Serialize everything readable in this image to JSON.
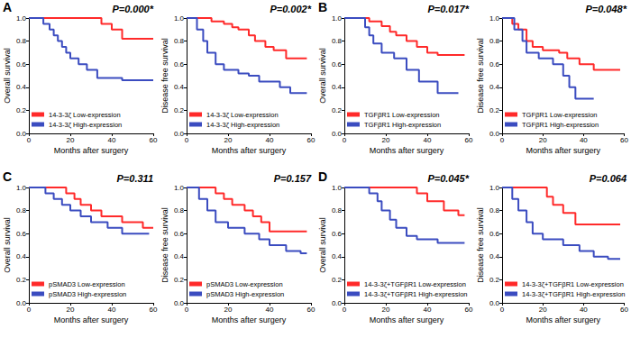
{
  "chart_data": [
    {
      "panel": "A",
      "type": "line",
      "line_style": "step",
      "annotation": "P=0.000*",
      "x_label": "Months after surgery",
      "y_label": "Overall survival",
      "legend": "lower left",
      "grid": false,
      "xlim": [
        0,
        60
      ],
      "xticks": [
        0,
        20,
        40,
        60
      ],
      "ylim": [
        0,
        1
      ],
      "yticks": [
        {
          "value": 0,
          "label": "0.0"
        },
        {
          "value": 0.2,
          "label": "0.2"
        },
        {
          "value": 0.4,
          "label": "0.4"
        },
        {
          "value": 0.6,
          "label": "0.6"
        },
        {
          "value": 0.8,
          "label": "0.8"
        },
        {
          "value": 1,
          "label": "1.0"
        }
      ],
      "series": [
        {
          "name": "14-3-3ζ Low-expression",
          "color": "#ff2a2a",
          "x": [
            0,
            35,
            40,
            45,
            60
          ],
          "values": [
            1,
            0.95,
            0.9,
            0.82,
            0.82
          ]
        },
        {
          "name": "14-3-3ζ High-expression",
          "color": "#3b4cc0",
          "x": [
            0,
            7,
            10,
            12,
            14,
            16,
            18,
            20,
            24,
            28,
            33,
            45,
            60
          ],
          "values": [
            1,
            0.95,
            0.9,
            0.85,
            0.8,
            0.75,
            0.7,
            0.65,
            0.6,
            0.55,
            0.48,
            0.46,
            0.46
          ]
        }
      ]
    },
    {
      "type": "line",
      "line_style": "step",
      "annotation": "P=0.002*",
      "x_label": "Months after surgery",
      "y_label": "Disease free survival",
      "legend": "lower left",
      "grid": false,
      "xlim": [
        0,
        60
      ],
      "xticks": [
        0,
        20,
        40,
        60
      ],
      "ylim": [
        0,
        1
      ],
      "yticks": [
        {
          "value": 0,
          "label": "0.0"
        },
        {
          "value": 0.2,
          "label": "0.2"
        },
        {
          "value": 0.4,
          "label": "0.4"
        },
        {
          "value": 0.6,
          "label": "0.6"
        },
        {
          "value": 0.8,
          "label": "0.8"
        },
        {
          "value": 1,
          "label": "1.0"
        }
      ],
      "series": [
        {
          "name": "14-3-3ζ Low-expression",
          "color": "#ff2a2a",
          "x": [
            0,
            12,
            18,
            22,
            25,
            30,
            33,
            38,
            42,
            48,
            58
          ],
          "values": [
            1,
            0.97,
            0.95,
            0.92,
            0.9,
            0.85,
            0.8,
            0.75,
            0.72,
            0.65,
            0.65
          ]
        },
        {
          "name": "14-3-3ζ High-expression",
          "color": "#3b4cc0",
          "x": [
            0,
            5,
            8,
            10,
            14,
            18,
            25,
            30,
            35,
            45,
            50,
            58
          ],
          "values": [
            1,
            0.9,
            0.8,
            0.7,
            0.6,
            0.55,
            0.52,
            0.5,
            0.45,
            0.4,
            0.35,
            0.35
          ]
        }
      ]
    },
    {
      "panel": "B",
      "type": "line",
      "line_style": "step",
      "annotation": "P=0.017*",
      "x_label": "Months after surgery",
      "y_label": "Overall survival",
      "legend": "lower left",
      "grid": false,
      "xlim": [
        0,
        60
      ],
      "xticks": [
        0,
        20,
        40,
        60
      ],
      "ylim": [
        0,
        1
      ],
      "yticks": [
        {
          "value": 0,
          "label": "0.0"
        },
        {
          "value": 0.2,
          "label": "0.2"
        },
        {
          "value": 0.4,
          "label": "0.4"
        },
        {
          "value": 0.6,
          "label": "0.6"
        },
        {
          "value": 0.8,
          "label": "0.8"
        },
        {
          "value": 1,
          "label": "1.0"
        }
      ],
      "series": [
        {
          "name": "TGFβR1 Low-expression",
          "color": "#ff2a2a",
          "x": [
            0,
            12,
            18,
            22,
            25,
            30,
            35,
            40,
            45,
            58
          ],
          "values": [
            1,
            0.97,
            0.93,
            0.88,
            0.85,
            0.8,
            0.75,
            0.7,
            0.68,
            0.68
          ]
        },
        {
          "name": "TGFβR1 High-expression",
          "color": "#3b4cc0",
          "x": [
            0,
            10,
            12,
            14,
            18,
            24,
            30,
            36,
            45,
            55
          ],
          "values": [
            1,
            0.92,
            0.85,
            0.78,
            0.7,
            0.65,
            0.55,
            0.45,
            0.35,
            0.35
          ]
        }
      ]
    },
    {
      "type": "line",
      "line_style": "step",
      "annotation": "P=0.048*",
      "x_label": "Months after surgery",
      "y_label": "Disease free survival",
      "legend": "lower left",
      "grid": false,
      "xlim": [
        0,
        60
      ],
      "xticks": [
        0,
        20,
        40,
        60
      ],
      "ylim": [
        0,
        1
      ],
      "yticks": [
        {
          "value": 0,
          "label": "0.0"
        },
        {
          "value": 0.2,
          "label": "0.2"
        },
        {
          "value": 0.4,
          "label": "0.4"
        },
        {
          "value": 0.6,
          "label": "0.6"
        },
        {
          "value": 0.8,
          "label": "0.8"
        },
        {
          "value": 1,
          "label": "1.0"
        }
      ],
      "series": [
        {
          "name": "TGFβR1 Low-expression",
          "color": "#ff2a2a",
          "x": [
            0,
            5,
            8,
            12,
            15,
            20,
            28,
            32,
            38,
            45,
            58
          ],
          "values": [
            1,
            0.95,
            0.9,
            0.8,
            0.75,
            0.72,
            0.7,
            0.65,
            0.6,
            0.55,
            0.55
          ]
        },
        {
          "name": "TGFβR1 High-expression",
          "color": "#3b4cc0",
          "x": [
            0,
            6,
            10,
            12,
            18,
            25,
            30,
            33,
            36,
            45
          ],
          "values": [
            1,
            0.9,
            0.8,
            0.7,
            0.65,
            0.6,
            0.5,
            0.4,
            0.3,
            0.3
          ]
        }
      ]
    },
    {
      "panel": "C",
      "type": "line",
      "line_style": "step",
      "annotation": "P=0.311",
      "x_label": "Months after surgery",
      "y_label": "Overall survival",
      "legend": "lower left",
      "grid": false,
      "xlim": [
        0,
        60
      ],
      "xticks": [
        0,
        20,
        40,
        60
      ],
      "ylim": [
        0,
        1
      ],
      "yticks": [
        {
          "value": 0,
          "label": "0.0"
        },
        {
          "value": 0.2,
          "label": "0.2"
        },
        {
          "value": 0.4,
          "label": "0.4"
        },
        {
          "value": 0.6,
          "label": "0.6"
        },
        {
          "value": 0.8,
          "label": "0.8"
        },
        {
          "value": 1,
          "label": "1.0"
        }
      ],
      "series": [
        {
          "name": "pSMAD3 Low-expression",
          "color": "#ff2a2a",
          "x": [
            0,
            18,
            22,
            25,
            30,
            35,
            45,
            55,
            60
          ],
          "values": [
            1,
            0.95,
            0.9,
            0.85,
            0.8,
            0.75,
            0.7,
            0.65,
            0.65
          ]
        },
        {
          "name": "pSMAD3 High-expression",
          "color": "#3b4cc0",
          "x": [
            0,
            8,
            12,
            16,
            20,
            25,
            30,
            38,
            45,
            58
          ],
          "values": [
            1,
            0.95,
            0.9,
            0.85,
            0.8,
            0.75,
            0.7,
            0.65,
            0.6,
            0.6
          ]
        }
      ]
    },
    {
      "type": "line",
      "line_style": "step",
      "annotation": "P=0.157",
      "x_label": "Months after surgery",
      "y_label": "Disease free survival",
      "legend": "lower left",
      "grid": false,
      "xlim": [
        0,
        60
      ],
      "xticks": [
        0,
        20,
        40,
        60
      ],
      "ylim": [
        0,
        1
      ],
      "yticks": [
        {
          "value": 0,
          "label": "0.0"
        },
        {
          "value": 0.2,
          "label": "0.2"
        },
        {
          "value": 0.4,
          "label": "0.4"
        },
        {
          "value": 0.6,
          "label": "0.6"
        },
        {
          "value": 0.8,
          "label": "0.8"
        },
        {
          "value": 1,
          "label": "1.0"
        }
      ],
      "series": [
        {
          "name": "pSMAD3 Low-expression",
          "color": "#ff2a2a",
          "x": [
            0,
            14,
            18,
            22,
            28,
            32,
            36,
            40,
            58
          ],
          "values": [
            1,
            0.95,
            0.9,
            0.85,
            0.8,
            0.75,
            0.7,
            0.62,
            0.62
          ]
        },
        {
          "name": "pSMAD3 High-expression",
          "color": "#3b4cc0",
          "x": [
            0,
            6,
            10,
            14,
            20,
            28,
            35,
            40,
            48,
            55,
            58
          ],
          "values": [
            1,
            0.9,
            0.8,
            0.7,
            0.65,
            0.6,
            0.55,
            0.5,
            0.45,
            0.43,
            0.43
          ]
        }
      ]
    },
    {
      "panel": "D",
      "type": "line",
      "line_style": "step",
      "annotation": "P=0.045*",
      "x_label": "Months after surgery",
      "y_label": "Overall survival",
      "legend": "lower left",
      "grid": false,
      "xlim": [
        0,
        60
      ],
      "xticks": [
        0,
        20,
        40,
        60
      ],
      "ylim": [
        0,
        1
      ],
      "yticks": [
        {
          "value": 0,
          "label": "0.0"
        },
        {
          "value": 0.2,
          "label": "0.2"
        },
        {
          "value": 0.4,
          "label": "0.4"
        },
        {
          "value": 0.6,
          "label": "0.6"
        },
        {
          "value": 0.8,
          "label": "0.8"
        },
        {
          "value": 1,
          "label": "1.0"
        }
      ],
      "series": [
        {
          "name": "14-3-3ζ+TGFβR1 Low-expression",
          "color": "#ff2a2a",
          "x": [
            0,
            35,
            40,
            48,
            55,
            58
          ],
          "values": [
            1,
            0.95,
            0.88,
            0.8,
            0.76,
            0.76
          ]
        },
        {
          "name": "14-3-3ζ+TGFβR1 High-expression",
          "color": "#3b4cc0",
          "x": [
            0,
            12,
            16,
            18,
            22,
            25,
            30,
            35,
            45,
            58
          ],
          "values": [
            1,
            0.95,
            0.88,
            0.8,
            0.72,
            0.65,
            0.58,
            0.55,
            0.52,
            0.52
          ]
        }
      ]
    },
    {
      "type": "line",
      "line_style": "step",
      "annotation": "P=0.064",
      "x_label": "Months after surgery",
      "y_label": "Disease free survival",
      "legend": "lower left",
      "grid": false,
      "xlim": [
        0,
        60
      ],
      "xticks": [
        0,
        20,
        40,
        60
      ],
      "ylim": [
        0,
        1
      ],
      "yticks": [
        {
          "value": 0,
          "label": "0.0"
        },
        {
          "value": 0.2,
          "label": "0.2"
        },
        {
          "value": 0.4,
          "label": "0.4"
        },
        {
          "value": 0.6,
          "label": "0.6"
        },
        {
          "value": 0.8,
          "label": "0.8"
        },
        {
          "value": 1,
          "label": "1.0"
        }
      ],
      "series": [
        {
          "name": "14-3-3ζ+TGFβR1 Low-expression",
          "color": "#ff2a2a",
          "x": [
            0,
            22,
            25,
            30,
            36,
            58
          ],
          "values": [
            1,
            0.92,
            0.85,
            0.78,
            0.68,
            0.68
          ]
        },
        {
          "name": "14-3-3ζ+TGFβR1 High-expression",
          "color": "#3b4cc0",
          "x": [
            0,
            5,
            8,
            12,
            15,
            20,
            30,
            38,
            45,
            52,
            58
          ],
          "values": [
            1,
            0.9,
            0.8,
            0.7,
            0.6,
            0.55,
            0.5,
            0.45,
            0.4,
            0.38,
            0.38
          ]
        }
      ]
    }
  ]
}
